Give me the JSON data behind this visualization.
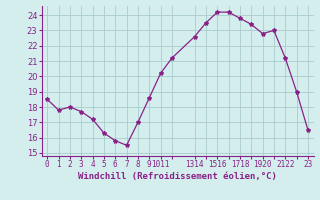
{
  "x": [
    0,
    1,
    2,
    3,
    4,
    5,
    6,
    7,
    8,
    9,
    10,
    11,
    13,
    14,
    15,
    16,
    17,
    18,
    19,
    20,
    21,
    22,
    23
  ],
  "y": [
    18.5,
    17.8,
    18.0,
    17.7,
    17.2,
    16.3,
    15.8,
    15.5,
    17.0,
    18.6,
    20.2,
    21.2,
    22.6,
    23.5,
    24.2,
    24.2,
    23.8,
    23.4,
    22.8,
    23.0,
    21.2,
    19.0,
    16.5
  ],
  "line_color": "#882288",
  "marker": "*",
  "marker_size": 3,
  "bg_color": "#d4eeed",
  "grid_color": "#aacccc",
  "xlabel": "Windchill (Refroidissement éolien,°C)",
  "xlabel_color": "#882288",
  "tick_color": "#882288",
  "ylim": [
    14.8,
    24.6
  ],
  "yticks": [
    15,
    16,
    17,
    18,
    19,
    20,
    21,
    22,
    23,
    24
  ],
  "xtick_positions": [
    0,
    1,
    2,
    3,
    4,
    5,
    6,
    7,
    8,
    9,
    10,
    11,
    13,
    14,
    15,
    16,
    17,
    18,
    19,
    20,
    21,
    22,
    23
  ],
  "xtick_labels": [
    "0",
    "1",
    "2",
    "3",
    "4",
    "5",
    "6",
    "7",
    "8",
    "9",
    "1011",
    "",
    "1314",
    "",
    "1516",
    "",
    "1718",
    "",
    "1920",
    "",
    "2122",
    "",
    "23"
  ]
}
